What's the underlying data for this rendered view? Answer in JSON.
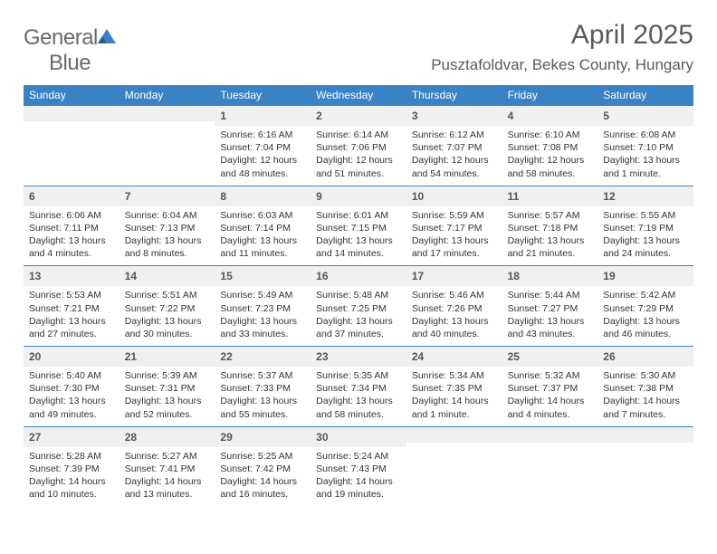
{
  "header": {
    "logo_general": "General",
    "logo_blue": "Blue",
    "title": "April 2025",
    "location": "Pusztafoldvar, Bekes County, Hungary"
  },
  "colors": {
    "header_bar": "#3b82c4",
    "daynum_bg": "#f0f0f0",
    "text": "#333333",
    "title_text": "#5a5a5a",
    "logo_gray": "#6a6a6a",
    "logo_blue": "#3b7fc4"
  },
  "weekdays": [
    "Sunday",
    "Monday",
    "Tuesday",
    "Wednesday",
    "Thursday",
    "Friday",
    "Saturday"
  ],
  "weeks": [
    [
      null,
      null,
      {
        "n": "1",
        "sr": "Sunrise: 6:16 AM",
        "ss": "Sunset: 7:04 PM",
        "dl1": "Daylight: 12 hours",
        "dl2": "and 48 minutes."
      },
      {
        "n": "2",
        "sr": "Sunrise: 6:14 AM",
        "ss": "Sunset: 7:06 PM",
        "dl1": "Daylight: 12 hours",
        "dl2": "and 51 minutes."
      },
      {
        "n": "3",
        "sr": "Sunrise: 6:12 AM",
        "ss": "Sunset: 7:07 PM",
        "dl1": "Daylight: 12 hours",
        "dl2": "and 54 minutes."
      },
      {
        "n": "4",
        "sr": "Sunrise: 6:10 AM",
        "ss": "Sunset: 7:08 PM",
        "dl1": "Daylight: 12 hours",
        "dl2": "and 58 minutes."
      },
      {
        "n": "5",
        "sr": "Sunrise: 6:08 AM",
        "ss": "Sunset: 7:10 PM",
        "dl1": "Daylight: 13 hours",
        "dl2": "and 1 minute."
      }
    ],
    [
      {
        "n": "6",
        "sr": "Sunrise: 6:06 AM",
        "ss": "Sunset: 7:11 PM",
        "dl1": "Daylight: 13 hours",
        "dl2": "and 4 minutes."
      },
      {
        "n": "7",
        "sr": "Sunrise: 6:04 AM",
        "ss": "Sunset: 7:13 PM",
        "dl1": "Daylight: 13 hours",
        "dl2": "and 8 minutes."
      },
      {
        "n": "8",
        "sr": "Sunrise: 6:03 AM",
        "ss": "Sunset: 7:14 PM",
        "dl1": "Daylight: 13 hours",
        "dl2": "and 11 minutes."
      },
      {
        "n": "9",
        "sr": "Sunrise: 6:01 AM",
        "ss": "Sunset: 7:15 PM",
        "dl1": "Daylight: 13 hours",
        "dl2": "and 14 minutes."
      },
      {
        "n": "10",
        "sr": "Sunrise: 5:59 AM",
        "ss": "Sunset: 7:17 PM",
        "dl1": "Daylight: 13 hours",
        "dl2": "and 17 minutes."
      },
      {
        "n": "11",
        "sr": "Sunrise: 5:57 AM",
        "ss": "Sunset: 7:18 PM",
        "dl1": "Daylight: 13 hours",
        "dl2": "and 21 minutes."
      },
      {
        "n": "12",
        "sr": "Sunrise: 5:55 AM",
        "ss": "Sunset: 7:19 PM",
        "dl1": "Daylight: 13 hours",
        "dl2": "and 24 minutes."
      }
    ],
    [
      {
        "n": "13",
        "sr": "Sunrise: 5:53 AM",
        "ss": "Sunset: 7:21 PM",
        "dl1": "Daylight: 13 hours",
        "dl2": "and 27 minutes."
      },
      {
        "n": "14",
        "sr": "Sunrise: 5:51 AM",
        "ss": "Sunset: 7:22 PM",
        "dl1": "Daylight: 13 hours",
        "dl2": "and 30 minutes."
      },
      {
        "n": "15",
        "sr": "Sunrise: 5:49 AM",
        "ss": "Sunset: 7:23 PM",
        "dl1": "Daylight: 13 hours",
        "dl2": "and 33 minutes."
      },
      {
        "n": "16",
        "sr": "Sunrise: 5:48 AM",
        "ss": "Sunset: 7:25 PM",
        "dl1": "Daylight: 13 hours",
        "dl2": "and 37 minutes."
      },
      {
        "n": "17",
        "sr": "Sunrise: 5:46 AM",
        "ss": "Sunset: 7:26 PM",
        "dl1": "Daylight: 13 hours",
        "dl2": "and 40 minutes."
      },
      {
        "n": "18",
        "sr": "Sunrise: 5:44 AM",
        "ss": "Sunset: 7:27 PM",
        "dl1": "Daylight: 13 hours",
        "dl2": "and 43 minutes."
      },
      {
        "n": "19",
        "sr": "Sunrise: 5:42 AM",
        "ss": "Sunset: 7:29 PM",
        "dl1": "Daylight: 13 hours",
        "dl2": "and 46 minutes."
      }
    ],
    [
      {
        "n": "20",
        "sr": "Sunrise: 5:40 AM",
        "ss": "Sunset: 7:30 PM",
        "dl1": "Daylight: 13 hours",
        "dl2": "and 49 minutes."
      },
      {
        "n": "21",
        "sr": "Sunrise: 5:39 AM",
        "ss": "Sunset: 7:31 PM",
        "dl1": "Daylight: 13 hours",
        "dl2": "and 52 minutes."
      },
      {
        "n": "22",
        "sr": "Sunrise: 5:37 AM",
        "ss": "Sunset: 7:33 PM",
        "dl1": "Daylight: 13 hours",
        "dl2": "and 55 minutes."
      },
      {
        "n": "23",
        "sr": "Sunrise: 5:35 AM",
        "ss": "Sunset: 7:34 PM",
        "dl1": "Daylight: 13 hours",
        "dl2": "and 58 minutes."
      },
      {
        "n": "24",
        "sr": "Sunrise: 5:34 AM",
        "ss": "Sunset: 7:35 PM",
        "dl1": "Daylight: 14 hours",
        "dl2": "and 1 minute."
      },
      {
        "n": "25",
        "sr": "Sunrise: 5:32 AM",
        "ss": "Sunset: 7:37 PM",
        "dl1": "Daylight: 14 hours",
        "dl2": "and 4 minutes."
      },
      {
        "n": "26",
        "sr": "Sunrise: 5:30 AM",
        "ss": "Sunset: 7:38 PM",
        "dl1": "Daylight: 14 hours",
        "dl2": "and 7 minutes."
      }
    ],
    [
      {
        "n": "27",
        "sr": "Sunrise: 5:28 AM",
        "ss": "Sunset: 7:39 PM",
        "dl1": "Daylight: 14 hours",
        "dl2": "and 10 minutes."
      },
      {
        "n": "28",
        "sr": "Sunrise: 5:27 AM",
        "ss": "Sunset: 7:41 PM",
        "dl1": "Daylight: 14 hours",
        "dl2": "and 13 minutes."
      },
      {
        "n": "29",
        "sr": "Sunrise: 5:25 AM",
        "ss": "Sunset: 7:42 PM",
        "dl1": "Daylight: 14 hours",
        "dl2": "and 16 minutes."
      },
      {
        "n": "30",
        "sr": "Sunrise: 5:24 AM",
        "ss": "Sunset: 7:43 PM",
        "dl1": "Daylight: 14 hours",
        "dl2": "and 19 minutes."
      },
      null,
      null,
      null
    ]
  ]
}
